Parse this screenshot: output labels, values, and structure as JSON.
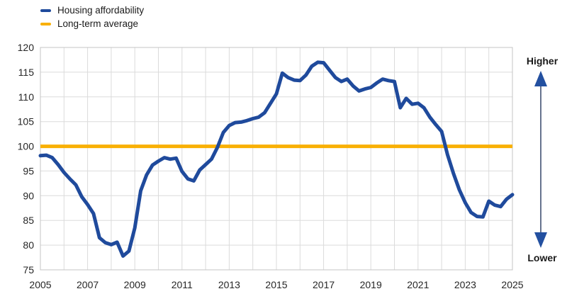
{
  "chart_data": {
    "type": "line",
    "title": "",
    "xlabel": "",
    "ylabel": "",
    "xlim": [
      2005,
      2025
    ],
    "ylim": [
      75,
      120
    ],
    "xticks": [
      2005,
      2007,
      2009,
      2011,
      2013,
      2015,
      2017,
      2019,
      2021,
      2023,
      2025
    ],
    "yticks": [
      75,
      80,
      85,
      90,
      95,
      100,
      105,
      110,
      115,
      120
    ],
    "grid": true,
    "x_grid_step": 1,
    "legend_position": "top-left",
    "x_start": 2005,
    "x_step": 0.25,
    "series": [
      {
        "name": "Housing affordability",
        "type": "line",
        "color": "#1F4A9C",
        "values": [
          98.1,
          98.2,
          97.7,
          96.3,
          94.7,
          93.4,
          92.2,
          89.8,
          88.2,
          86.4,
          81.5,
          80.5,
          80.1,
          80.6,
          77.8,
          78.8,
          83.5,
          91.0,
          94.2,
          96.2,
          97.0,
          97.7,
          97.4,
          97.6,
          94.9,
          93.4,
          93.0,
          95.2,
          96.3,
          97.4,
          99.8,
          102.8,
          104.2,
          104.8,
          104.9,
          105.2,
          105.6,
          105.9,
          106.8,
          108.7,
          110.6,
          114.8,
          113.9,
          113.4,
          113.3,
          114.4,
          116.2,
          117.0,
          116.9,
          115.4,
          113.9,
          113.1,
          113.6,
          112.2,
          111.2,
          111.6,
          111.9,
          112.8,
          113.6,
          113.3,
          113.1,
          107.8,
          109.7,
          108.5,
          108.7,
          107.8,
          105.9,
          104.4,
          103.0,
          98.3,
          94.5,
          91.2,
          88.6,
          86.6,
          85.8,
          85.7,
          88.9,
          88.1,
          87.8,
          89.3,
          90.2
        ]
      },
      {
        "name": "Long-term average",
        "type": "constant-line",
        "color": "#F9B004",
        "value": 100
      }
    ],
    "annotation": {
      "higher_label": "Higher",
      "lower_label": "Lower"
    }
  },
  "colors": {
    "grid": "#DBDBDB",
    "border": "#C4C4C4",
    "text": "#262626",
    "arrow_shaft": "#66738E",
    "arrow_head": "#2350A0"
  }
}
